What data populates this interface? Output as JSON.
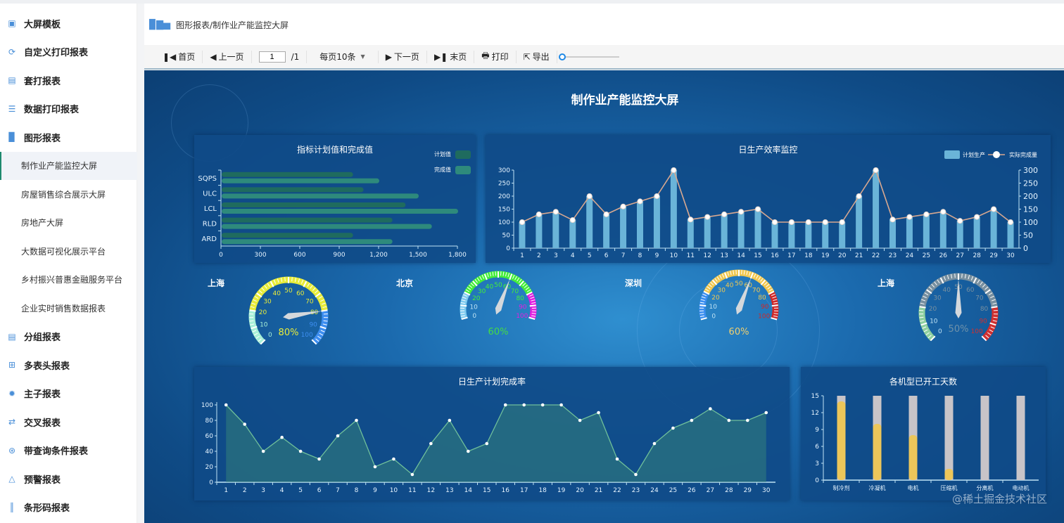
{
  "sidebar": {
    "items": [
      {
        "label": "大屏模板",
        "icon": "monitor-icon",
        "type": "group"
      },
      {
        "label": "自定义打印报表",
        "icon": "refresh-icon",
        "type": "group"
      },
      {
        "label": "套打报表",
        "icon": "printer-icon",
        "type": "group"
      },
      {
        "label": "数据打印报表",
        "icon": "database-icon",
        "type": "group"
      },
      {
        "label": "图形报表",
        "icon": "bar-chart-icon",
        "type": "group"
      },
      {
        "label": "制作业产能监控大屏",
        "type": "sub",
        "active": true
      },
      {
        "label": "房屋销售综合展示大屏",
        "type": "sub"
      },
      {
        "label": "房地产大屏",
        "type": "sub"
      },
      {
        "label": "大数据可视化展示平台",
        "type": "sub"
      },
      {
        "label": "乡村振兴普惠金融服务平台",
        "type": "sub"
      },
      {
        "label": "企业实时销售数据报表",
        "type": "sub"
      },
      {
        "label": "分组报表",
        "icon": "list-icon",
        "type": "group"
      },
      {
        "label": "多表头报表",
        "icon": "table-icon",
        "type": "group"
      },
      {
        "label": "主子报表",
        "icon": "gear-icon",
        "type": "group"
      },
      {
        "label": "交叉报表",
        "icon": "shuffle-icon",
        "type": "group"
      },
      {
        "label": "带查询条件报表",
        "icon": "search-filter-icon",
        "type": "group"
      },
      {
        "label": "预警报表",
        "icon": "alert-icon",
        "type": "group"
      },
      {
        "label": "条形码报表",
        "icon": "barcode-icon",
        "type": "group"
      }
    ]
  },
  "breadcrumb": "图形报表/制作业产能监控大屏",
  "toolbar": {
    "first": "首页",
    "prev": "上一页",
    "page": "1",
    "total": "/1",
    "per_page": "每页10条",
    "next": "下一页",
    "last": "末页",
    "print": "打印",
    "export": "导出",
    "zoom_level": 0
  },
  "dashboard": {
    "title": "制作业产能监控大屏"
  },
  "watermark": "@稀土掘金技术社区",
  "chart_data": [
    {
      "id": "indicator",
      "type": "bar",
      "orientation": "horizontal",
      "title": "指标计划值和完成值",
      "categories": [
        "SQPS",
        "ULC",
        "LCL",
        "RLD",
        "ARD"
      ],
      "series": [
        {
          "name": "计划值",
          "values": [
            1000,
            1080,
            1400,
            1300,
            1000
          ],
          "color": "#1f6b5e"
        },
        {
          "name": "完成值",
          "values": [
            1200,
            1500,
            1800,
            1600,
            1300
          ],
          "color": "#2e8a7c"
        }
      ],
      "xlim": [
        0,
        1800
      ],
      "xticks": [
        "0",
        "300",
        "600",
        "900",
        "1,200",
        "1,500",
        "1,800"
      ],
      "legend": "top-right",
      "grid": false
    },
    {
      "id": "efficiency",
      "type": "bar+line",
      "title": "日生产效率监控",
      "categories": [
        "1",
        "2",
        "3",
        "4",
        "5",
        "6",
        "7",
        "8",
        "9",
        "10",
        "11",
        "12",
        "13",
        "14",
        "15",
        "16",
        "17",
        "18",
        "19",
        "20",
        "21",
        "22",
        "23",
        "24",
        "25",
        "26",
        "27",
        "28",
        "29",
        "30"
      ],
      "series": [
        {
          "name": "计划生产",
          "type": "bar",
          "values": [
            100,
            130,
            140,
            108,
            200,
            130,
            160,
            180,
            200,
            300,
            110,
            120,
            130,
            140,
            150,
            100,
            100,
            100,
            100,
            100,
            200,
            300,
            110,
            120,
            130,
            140,
            105,
            120,
            150,
            100
          ],
          "color": "#6ab4d8"
        },
        {
          "name": "实际完成量",
          "type": "line",
          "values": [
            100,
            130,
            140,
            108,
            200,
            130,
            160,
            180,
            200,
            300,
            110,
            120,
            130,
            140,
            150,
            100,
            100,
            100,
            100,
            100,
            200,
            300,
            110,
            120,
            130,
            140,
            105,
            120,
            150,
            100
          ],
          "color": "#d8a890"
        }
      ],
      "ylim": [
        0,
        300
      ],
      "yticks": [
        "0",
        "50",
        "100",
        "150",
        "200",
        "250",
        "300"
      ],
      "legend": "top-right",
      "grid": false
    },
    {
      "id": "gauges",
      "type": "gauge",
      "items": [
        {
          "label": "上海",
          "value": 80,
          "text": "80%",
          "colors": [
            "#a8f0d8",
            "#e8ec3a",
            "#3d8ef0"
          ],
          "text_color": "#e8ec3a"
        },
        {
          "label": "北京",
          "value": 60,
          "text": "60%",
          "colors": [
            "#7ecbf0",
            "#44ee3a",
            "#e020e0"
          ],
          "text_color": "#44dd44"
        },
        {
          "label": "深圳",
          "value": 60,
          "text": "60%",
          "colors": [
            "#3a8ef0",
            "#f0c850",
            "#d02828"
          ],
          "text_color": "#f0d070"
        },
        {
          "label": "上海",
          "value": 50,
          "text": "50%",
          "colors": [
            "#8fd0a0",
            "#7890a0",
            "#d03030"
          ],
          "text_color": "#6f92aa"
        }
      ]
    },
    {
      "id": "rate",
      "type": "area",
      "title": "日生产计划完成率",
      "categories": [
        "1",
        "2",
        "3",
        "4",
        "5",
        "6",
        "7",
        "8",
        "9",
        "10",
        "11",
        "12",
        "13",
        "14",
        "15",
        "16",
        "17",
        "18",
        "19",
        "20",
        "21",
        "22",
        "23",
        "24",
        "25",
        "26",
        "27",
        "28",
        "29",
        "30"
      ],
      "values": [
        100,
        75,
        40,
        58,
        40,
        30,
        60,
        80,
        20,
        30,
        10,
        50,
        80,
        40,
        50,
        100,
        100,
        100,
        100,
        80,
        90,
        30,
        10,
        50,
        70,
        80,
        95,
        80,
        80,
        90
      ],
      "ylim": [
        0,
        100
      ],
      "yticks": [
        "0",
        "20",
        "40",
        "60",
        "80",
        "100"
      ],
      "color": "#6fbf9a",
      "grid": false
    },
    {
      "id": "machine",
      "type": "bar",
      "title": "各机型已开工天数",
      "categories": [
        "制冷剂",
        "冷凝机",
        "电机",
        "压缩机",
        "分离机",
        "电动机"
      ],
      "values": [
        14,
        10,
        8,
        2,
        0,
        0
      ],
      "max": 15,
      "ylim": [
        0,
        15
      ],
      "yticks": [
        "0",
        "3",
        "6",
        "9",
        "12",
        "15"
      ],
      "color": "#ecc65a",
      "background_color": "#c8c4c8",
      "grid": false
    }
  ]
}
